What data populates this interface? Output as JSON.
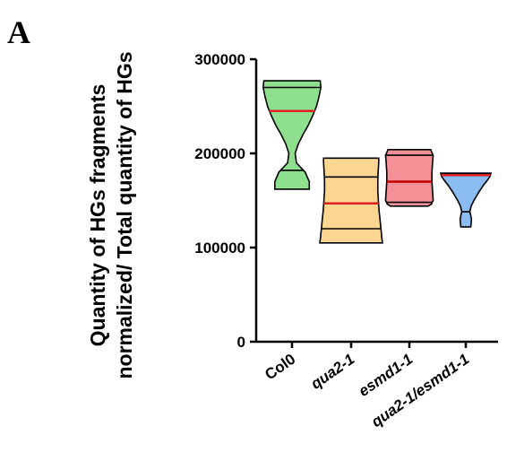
{
  "panel_label": "A",
  "chart_data": {
    "type": "violin",
    "ylabel_lines": [
      "Quantity of HGs fragments",
      "normalized/ Total quantity of HGs"
    ],
    "ylim": [
      0,
      300000
    ],
    "yticks": [
      0,
      100000,
      200000,
      300000
    ],
    "ytick_labels": [
      "0",
      "100000",
      "200000",
      "300000"
    ],
    "grid": false,
    "legend": "none",
    "categories": [
      {
        "label": "Col0",
        "italic": false,
        "fill_color": "#8ee08e",
        "median_color": "#e02020",
        "min": 162000,
        "max": 277000,
        "q1": 182000,
        "median": 245000,
        "q3": 270000,
        "profile": [
          [
            162000,
            0.55
          ],
          [
            170000,
            0.55
          ],
          [
            180000,
            0.42
          ],
          [
            190000,
            0.14
          ],
          [
            200000,
            0.1
          ],
          [
            210000,
            0.2
          ],
          [
            220000,
            0.35
          ],
          [
            230000,
            0.52
          ],
          [
            240000,
            0.66
          ],
          [
            250000,
            0.78
          ],
          [
            260000,
            0.86
          ],
          [
            270000,
            0.92
          ],
          [
            277000,
            0.9
          ]
        ]
      },
      {
        "label": "qua2-1",
        "italic": true,
        "fill_color": "#fcd591",
        "median_color": "#e02020",
        "min": 105000,
        "max": 195000,
        "q1": 120000,
        "median": 147000,
        "q3": 175000,
        "profile": [
          [
            105000,
            1.0
          ],
          [
            110000,
            0.98
          ],
          [
            120000,
            0.95
          ],
          [
            130000,
            0.92
          ],
          [
            140000,
            0.89
          ],
          [
            150000,
            0.87
          ],
          [
            160000,
            0.85
          ],
          [
            170000,
            0.85
          ],
          [
            180000,
            0.86
          ],
          [
            190000,
            0.88
          ],
          [
            195000,
            0.88
          ]
        ]
      },
      {
        "label": "esmd1-1",
        "italic": true,
        "fill_color": "#f49096",
        "median_color": "#c00000",
        "min": 144000,
        "max": 204000,
        "q1": 148000,
        "median": 170000,
        "q3": 198000,
        "profile": [
          [
            144000,
            0.6
          ],
          [
            146000,
            0.7
          ],
          [
            150000,
            0.76
          ],
          [
            160000,
            0.74
          ],
          [
            170000,
            0.72
          ],
          [
            180000,
            0.72
          ],
          [
            190000,
            0.74
          ],
          [
            198000,
            0.76
          ],
          [
            204000,
            0.68
          ]
        ]
      },
      {
        "label": "qua2-1/esmd1-1",
        "italic": true,
        "fill_color": "#8bbcf2",
        "median_color": "#e02020",
        "min": 122000,
        "max": 179000,
        "q1": 138000,
        "median": 177000,
        "q3": 178000,
        "profile": [
          [
            122000,
            0.16
          ],
          [
            126000,
            0.17
          ],
          [
            130000,
            0.18
          ],
          [
            134000,
            0.16
          ],
          [
            138000,
            0.13
          ],
          [
            144000,
            0.17
          ],
          [
            150000,
            0.26
          ],
          [
            158000,
            0.4
          ],
          [
            166000,
            0.56
          ],
          [
            172000,
            0.7
          ],
          [
            176000,
            0.78
          ],
          [
            179000,
            0.8
          ]
        ]
      }
    ]
  }
}
